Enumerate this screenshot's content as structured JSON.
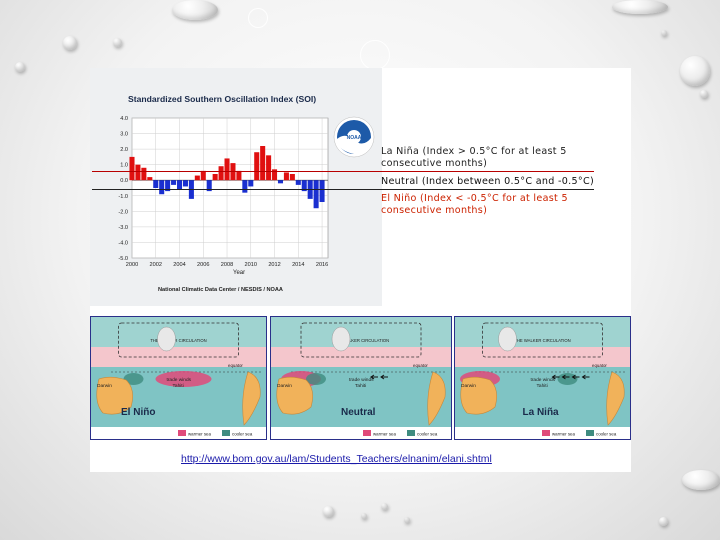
{
  "soi_chart": {
    "title": "Standardized Southern Oscillation Index (SOI)",
    "xlabel": "Year",
    "credit": "National Climatic Data Center / NESDIS / NOAA",
    "y_ticks": [
      "4.0",
      "3.0",
      "2.0",
      "1.0",
      "0.0",
      "-1.0",
      "-2.0",
      "-3.0",
      "-4.0",
      "-5.0"
    ],
    "x_ticks": [
      "2000",
      "2002",
      "2004",
      "2006",
      "2008",
      "2010",
      "2012",
      "2014",
      "2016"
    ],
    "logo_text": "NOAA",
    "colors": {
      "positive": "#e01010",
      "negative": "#1a2fd0",
      "background": "#eef0f2"
    }
  },
  "chart_data": {
    "type": "bar",
    "title": "Standardized Southern Oscillation Index (SOI)",
    "xlabel": "Year",
    "ylabel": "",
    "xlim": [
      2000,
      2016.5
    ],
    "ylim": [
      -5,
      4
    ],
    "x": [
      2000.0,
      2000.5,
      2001.0,
      2001.5,
      2002.0,
      2002.5,
      2003.0,
      2003.5,
      2004.0,
      2004.5,
      2005.0,
      2005.5,
      2006.0,
      2006.5,
      2007.0,
      2007.5,
      2008.0,
      2008.5,
      2009.0,
      2009.5,
      2010.0,
      2010.5,
      2011.0,
      2011.5,
      2012.0,
      2012.5,
      2013.0,
      2013.5,
      2014.0,
      2014.5,
      2015.0,
      2015.5,
      2016.0
    ],
    "values": [
      1.5,
      1.0,
      0.8,
      0.2,
      -0.5,
      -0.9,
      -0.7,
      -0.3,
      -0.6,
      -0.4,
      -1.2,
      0.3,
      0.6,
      -0.7,
      0.4,
      0.9,
      1.4,
      1.1,
      0.6,
      -0.8,
      -0.4,
      1.8,
      2.2,
      1.6,
      0.7,
      -0.2,
      0.5,
      0.4,
      -0.3,
      -0.7,
      -1.2,
      -1.8,
      -1.4
    ]
  },
  "legend": {
    "la_nina": "La Niña (Index > 0.5°C for at least 5 consecutive months)",
    "neutral": "Neutral (Index between 0.5°C and -0.5°C)",
    "el_nino": "El Niño (Index < -0.5°C for at least 5 consecutive months)"
  },
  "walker_panels": [
    {
      "title": "El Niño",
      "circulation": "THE WALKER CIRCULATION",
      "equator": "equator",
      "darwin": "Darwin",
      "tahiti": "Tahiti",
      "trade_winds": "trade winds",
      "key_warm": "warmer sea",
      "key_cool": "cooler sea"
    },
    {
      "title": "Neutral",
      "circulation": "THE WALKER CIRCULATION",
      "equator": "equator",
      "darwin": "Darwin",
      "tahiti": "Tahiti",
      "trade_winds": "trade winds",
      "key_warm": "warmer sea",
      "key_cool": "cooler sea"
    },
    {
      "title": "La Niña",
      "circulation": "THE WALKER CIRCULATION",
      "equator": "equator",
      "darwin": "Darwin",
      "tahiti": "Tahiti",
      "trade_winds": "trade winds",
      "key_warm": "warmer sea",
      "key_cool": "cooler sea"
    }
  ],
  "source": {
    "link_text": "http://www.bom.gov.au/lam/Students_Teachers/elnanim/elani.shtml"
  }
}
